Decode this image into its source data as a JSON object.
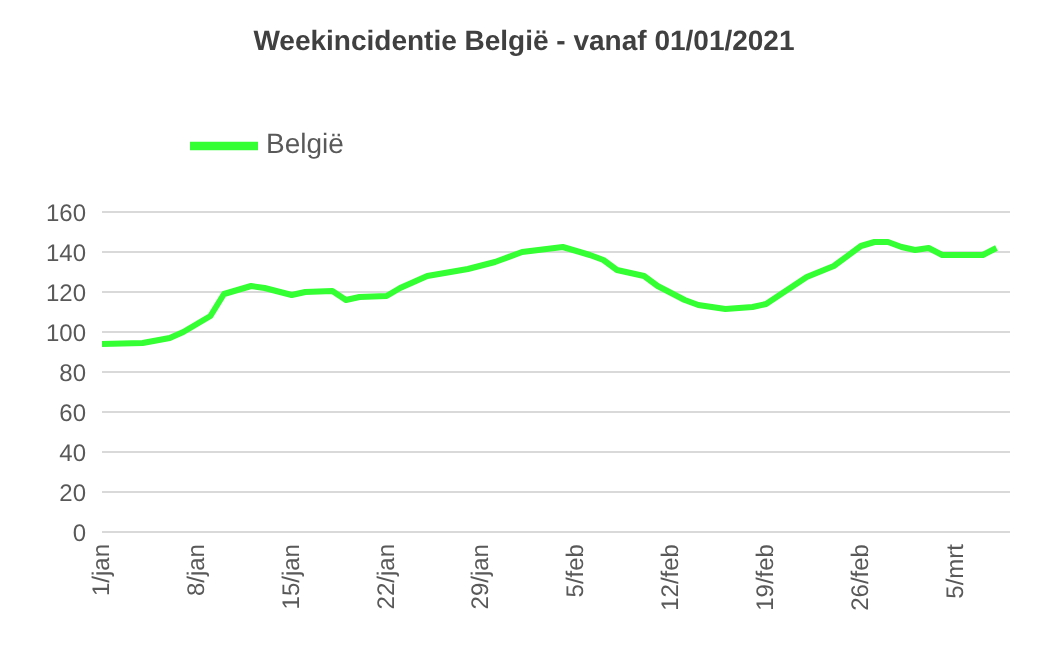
{
  "chart_data": {
    "type": "line",
    "title": "Weekincidentie  België - vanaf 01/01/2021",
    "x": [
      "2021-01-01",
      "2021-01-04",
      "2021-01-06",
      "2021-01-07",
      "2021-01-08",
      "2021-01-09",
      "2021-01-10",
      "2021-01-11",
      "2021-01-12",
      "2021-01-13",
      "2021-01-15",
      "2021-01-16",
      "2021-01-18",
      "2021-01-19",
      "2021-01-20",
      "2021-01-22",
      "2021-01-23",
      "2021-01-25",
      "2021-01-28",
      "2021-01-30",
      "2021-02-01",
      "2021-02-04",
      "2021-02-06",
      "2021-02-07",
      "2021-02-08",
      "2021-02-10",
      "2021-02-11",
      "2021-02-13",
      "2021-02-14",
      "2021-02-16",
      "2021-02-18",
      "2021-02-19",
      "2021-02-21",
      "2021-02-22",
      "2021-02-24",
      "2021-02-26",
      "2021-02-27",
      "2021-02-28",
      "2021-03-01",
      "2021-03-02",
      "2021-03-03",
      "2021-03-04",
      "2021-03-07",
      "2021-03-08"
    ],
    "series": [
      {
        "name": "België",
        "color": "#33ff33",
        "values": [
          94,
          94.5,
          97,
          100,
          104,
          108,
          119,
          121,
          123,
          122,
          118.5,
          120,
          120.5,
          116,
          117.5,
          118,
          122,
          128,
          131.5,
          135,
          140,
          142.5,
          138.5,
          136,
          131,
          128,
          123,
          116,
          113.5,
          111.5,
          112.5,
          114,
          123,
          127.5,
          133,
          143,
          145,
          145,
          142.5,
          141,
          142,
          138.5,
          138.5,
          142
        ]
      }
    ],
    "xlim": [
      "2021-01-01",
      "2021-03-09"
    ],
    "xticks": [
      {
        "value": "2021-01-01",
        "label": "1/jan"
      },
      {
        "value": "2021-01-08",
        "label": "8/jan"
      },
      {
        "value": "2021-01-15",
        "label": "15/jan"
      },
      {
        "value": "2021-01-22",
        "label": "22/jan"
      },
      {
        "value": "2021-01-29",
        "label": "29/jan"
      },
      {
        "value": "2021-02-05",
        "label": "5/feb"
      },
      {
        "value": "2021-02-12",
        "label": "12/feb"
      },
      {
        "value": "2021-02-19",
        "label": "19/feb"
      },
      {
        "value": "2021-02-26",
        "label": "26/feb"
      },
      {
        "value": "2021-03-05",
        "label": "5/mrt"
      }
    ],
    "ylim": [
      0,
      160
    ],
    "yticks": [
      0,
      20,
      40,
      60,
      80,
      100,
      120,
      140,
      160
    ],
    "grid": "y",
    "legend": "top left",
    "marker": "none",
    "line_style": "solid"
  }
}
